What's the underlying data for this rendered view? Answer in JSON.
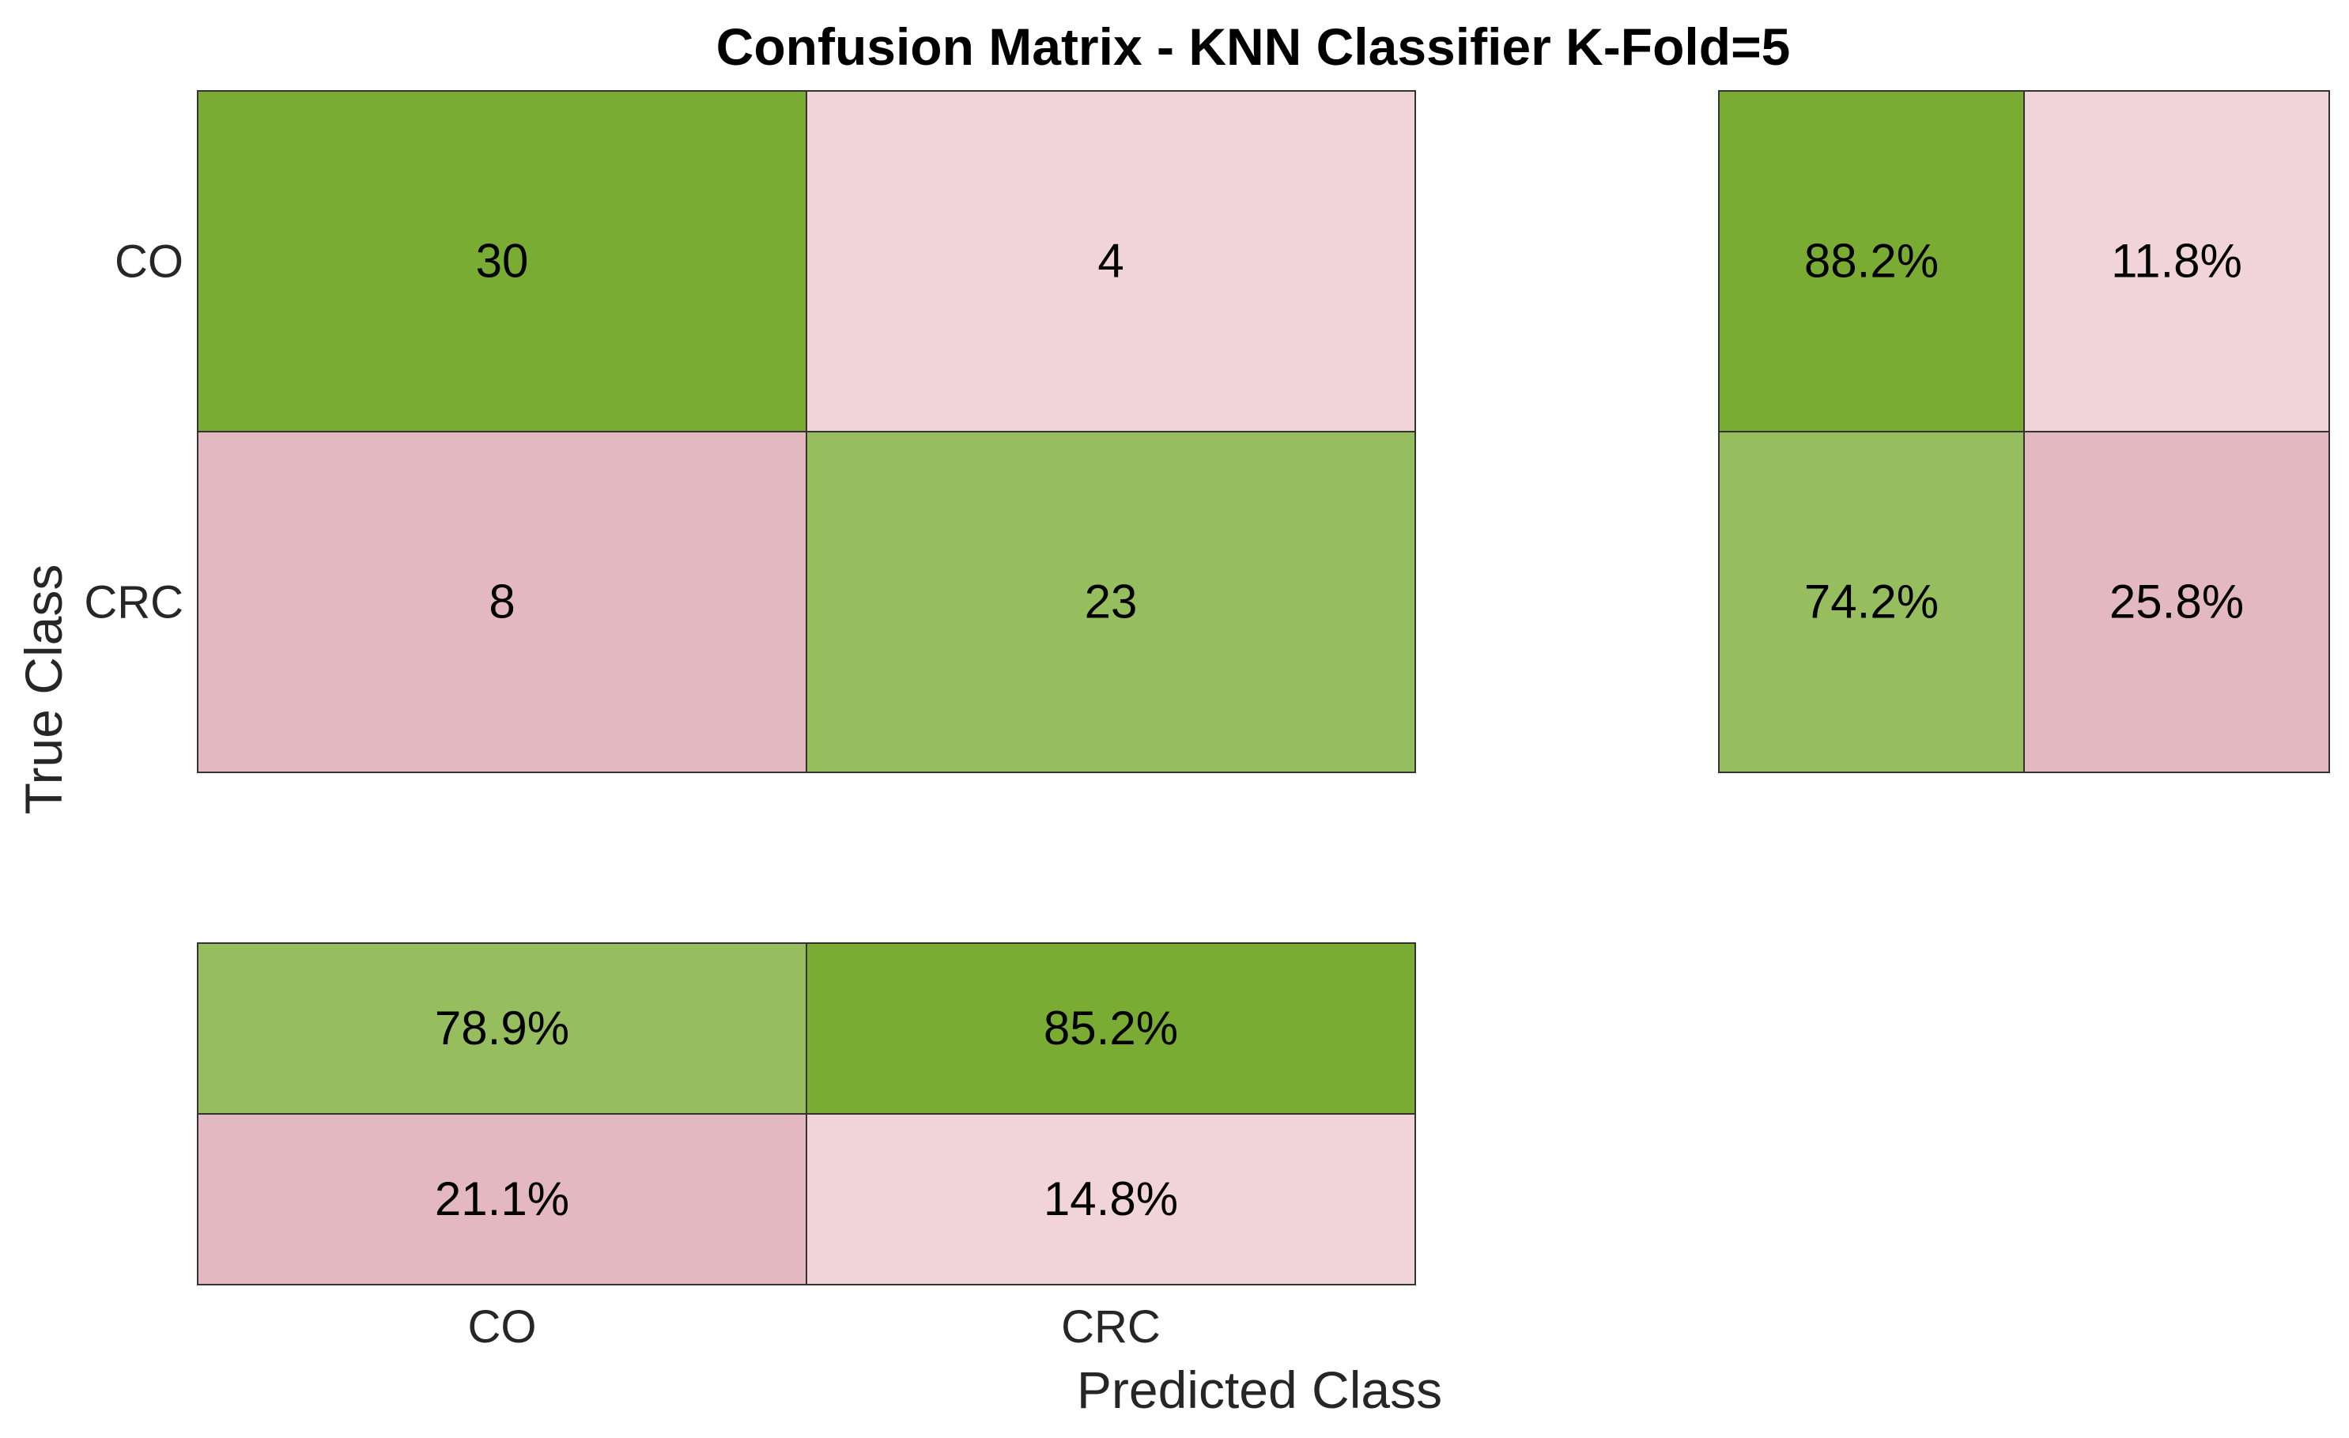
{
  "chart_data": {
    "type": "heatmap",
    "title": "Confusion Matrix - KNN Classifier K-Fold=5",
    "xlabel": "Predicted Class",
    "ylabel": "True Class",
    "classes": [
      "CO",
      "CRC"
    ],
    "matrix": [
      [
        30,
        4
      ],
      [
        8,
        23
      ]
    ],
    "row_summary": [
      [
        "88.2%",
        "11.8%"
      ],
      [
        "74.2%",
        "25.8%"
      ]
    ],
    "column_summary": [
      [
        "78.9%",
        "85.2%"
      ],
      [
        "21.1%",
        "14.8%"
      ]
    ],
    "colors": {
      "correct_strong": "#7aab32",
      "correct_medium": "#87b54a",
      "correct_light": "#96bd5e",
      "incorrect_strong": "#e3b8c1",
      "incorrect_medium": "#e8c6cd",
      "incorrect_light": "#f0d4da"
    }
  }
}
